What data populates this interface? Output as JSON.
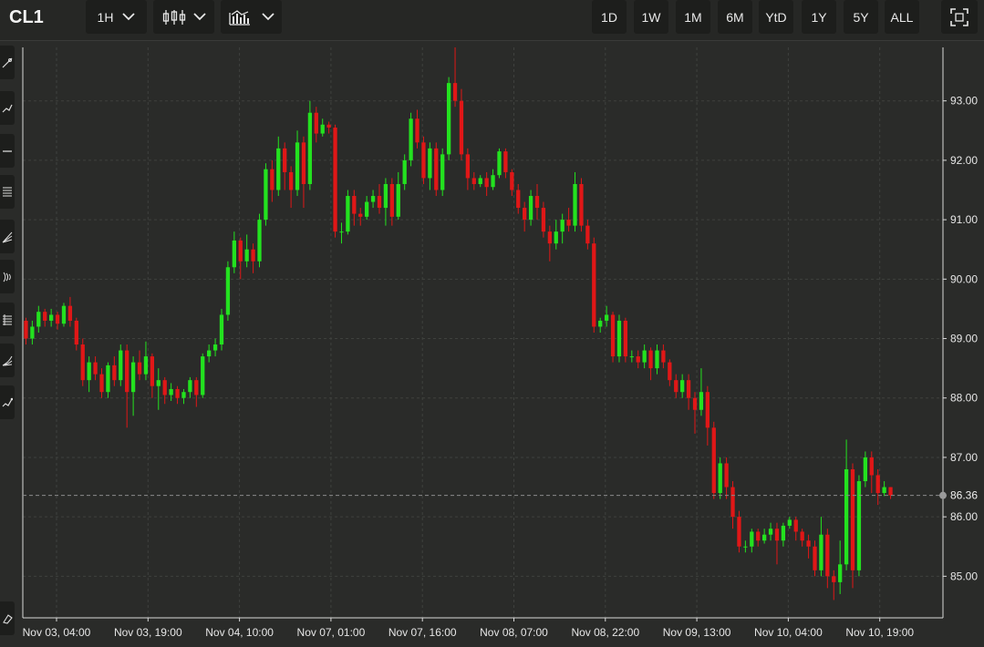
{
  "header": {
    "symbol": "CL1",
    "interval_label": "1H",
    "chart_type_icon": "candlestick-icon",
    "indicators_icon": "indicators-icon",
    "ranges": [
      "1D",
      "1W",
      "1M",
      "6M",
      "YtD",
      "1Y",
      "5Y",
      "ALL"
    ],
    "fullscreen_icon": "fullscreen-icon"
  },
  "toolbar_icons": [
    "line-tool-icon",
    "trend-tool-icon",
    "horizontal-line-icon",
    "fib-retracement-icon",
    "fib-fan-icon",
    "fib-arc-icon",
    "pitchfork-icon",
    "gann-fan-icon",
    "brush-icon",
    "eraser-icon"
  ],
  "colors": {
    "up": "#23e21f",
    "down": "#e01717",
    "background": "#2a2b29",
    "grid": "#3f413e",
    "last_price_line": "#8a8a8a"
  },
  "chart_data": {
    "type": "candlestick",
    "ylim": [
      84.3,
      93.9
    ],
    "y_ticks": [
      "93.00",
      "92.00",
      "91.00",
      "90.00",
      "89.00",
      "88.00",
      "87.00",
      "86.00",
      "85.00"
    ],
    "y_tick_values": [
      93,
      92,
      91,
      90,
      89,
      88,
      87,
      86,
      85
    ],
    "x_ticks": [
      "Nov 03, 04:00",
      "Nov 03, 19:00",
      "Nov 04, 10:00",
      "Nov 07, 01:00",
      "Nov 07, 16:00",
      "Nov 08, 07:00",
      "Nov 08, 22:00",
      "Nov 09, 13:00",
      "Nov 10, 04:00",
      "Nov 10, 19:00"
    ],
    "last_price": 86.36,
    "last_price_label": "86.36",
    "candles": [
      [
        89.3,
        89.0,
        89.35,
        88.9
      ],
      [
        89.0,
        89.2,
        89.3,
        88.9
      ],
      [
        89.2,
        89.45,
        89.55,
        89.1
      ],
      [
        89.45,
        89.3,
        89.5,
        89.2
      ],
      [
        89.3,
        89.4,
        89.5,
        89.2
      ],
      [
        89.4,
        89.25,
        89.45,
        89.15
      ],
      [
        89.25,
        89.55,
        89.6,
        89.2
      ],
      [
        89.55,
        89.3,
        89.7,
        89.2
      ],
      [
        89.3,
        88.9,
        89.35,
        88.8
      ],
      [
        88.9,
        88.3,
        89.0,
        88.2
      ],
      [
        88.3,
        88.6,
        88.7,
        88.1
      ],
      [
        88.6,
        88.4,
        88.7,
        88.3
      ],
      [
        88.4,
        88.1,
        88.5,
        88.0
      ],
      [
        88.1,
        88.55,
        88.6,
        88.0
      ],
      [
        88.55,
        88.3,
        88.7,
        88.2
      ],
      [
        88.3,
        88.8,
        88.9,
        88.2
      ],
      [
        88.8,
        88.1,
        88.9,
        87.5
      ],
      [
        88.1,
        88.6,
        88.7,
        87.7
      ],
      [
        88.6,
        88.4,
        88.8,
        88.3
      ],
      [
        88.4,
        88.7,
        88.95,
        88.3
      ],
      [
        88.7,
        88.2,
        88.75,
        88.0
      ],
      [
        88.2,
        88.3,
        88.5,
        87.8
      ],
      [
        88.3,
        88.05,
        88.35,
        87.9
      ],
      [
        88.05,
        88.15,
        88.25,
        87.95
      ],
      [
        88.15,
        88.0,
        88.2,
        87.9
      ],
      [
        88.0,
        88.1,
        88.15,
        87.9
      ],
      [
        88.1,
        88.3,
        88.35,
        88.0
      ],
      [
        88.3,
        88.05,
        88.35,
        87.85
      ],
      [
        88.05,
        88.7,
        88.75,
        88.0
      ],
      [
        88.7,
        88.8,
        88.9,
        88.6
      ],
      [
        88.8,
        88.9,
        89.0,
        88.7
      ],
      [
        88.9,
        89.4,
        89.5,
        88.8
      ],
      [
        89.4,
        90.2,
        90.3,
        89.3
      ],
      [
        90.2,
        90.65,
        90.8,
        90.1
      ],
      [
        90.65,
        90.3,
        90.7,
        90.0
      ],
      [
        90.3,
        90.5,
        90.75,
        90.2
      ],
      [
        90.5,
        90.3,
        90.6,
        90.1
      ],
      [
        90.3,
        91.0,
        91.1,
        90.2
      ],
      [
        91.0,
        91.85,
        91.95,
        90.9
      ],
      [
        91.85,
        91.5,
        92.0,
        91.3
      ],
      [
        91.5,
        92.2,
        92.4,
        91.4
      ],
      [
        92.2,
        91.8,
        92.3,
        91.5
      ],
      [
        91.8,
        91.5,
        91.9,
        91.2
      ],
      [
        91.5,
        92.3,
        92.5,
        91.4
      ],
      [
        92.3,
        91.6,
        92.4,
        91.2
      ],
      [
        91.6,
        92.8,
        93.0,
        91.5
      ],
      [
        92.8,
        92.45,
        92.9,
        92.3
      ],
      [
        92.45,
        92.6,
        92.7,
        92.4
      ],
      [
        92.6,
        92.55,
        92.65,
        92.45
      ],
      [
        92.55,
        90.8,
        92.6,
        90.7
      ],
      [
        90.8,
        90.8,
        90.95,
        90.6
      ],
      [
        90.8,
        91.4,
        91.5,
        90.75
      ],
      [
        91.4,
        91.1,
        91.5,
        90.9
      ],
      [
        91.1,
        91.05,
        91.2,
        90.9
      ],
      [
        91.05,
        91.3,
        91.4,
        91.0
      ],
      [
        91.3,
        91.4,
        91.5,
        91.2
      ],
      [
        91.4,
        91.2,
        91.6,
        91.1
      ],
      [
        91.2,
        91.6,
        91.7,
        90.9
      ],
      [
        91.6,
        91.05,
        91.7,
        90.9
      ],
      [
        91.05,
        91.6,
        91.8,
        91.0
      ],
      [
        91.6,
        92.0,
        92.1,
        91.5
      ],
      [
        92.0,
        92.7,
        92.8,
        91.9
      ],
      [
        92.7,
        92.3,
        92.85,
        92.2
      ],
      [
        92.3,
        91.7,
        92.4,
        91.6
      ],
      [
        91.7,
        92.2,
        92.3,
        91.5
      ],
      [
        92.2,
        91.5,
        92.3,
        91.4
      ],
      [
        91.5,
        92.1,
        92.2,
        91.4
      ],
      [
        92.1,
        93.3,
        93.4,
        92.0
      ],
      [
        93.3,
        93.0,
        93.9,
        92.9
      ],
      [
        93.0,
        92.1,
        93.2,
        92.0
      ],
      [
        92.1,
        91.7,
        92.2,
        91.5
      ],
      [
        91.7,
        91.6,
        91.8,
        91.5
      ],
      [
        91.6,
        91.7,
        91.75,
        91.55
      ],
      [
        91.7,
        91.55,
        91.8,
        91.4
      ],
      [
        91.55,
        91.75,
        91.85,
        91.5
      ],
      [
        91.75,
        92.15,
        92.2,
        91.7
      ],
      [
        92.15,
        91.8,
        92.2,
        91.7
      ],
      [
        91.8,
        91.5,
        91.85,
        91.4
      ],
      [
        91.5,
        91.2,
        91.6,
        91.1
      ],
      [
        91.2,
        91.0,
        91.3,
        90.8
      ],
      [
        91.0,
        91.4,
        91.5,
        90.9
      ],
      [
        91.4,
        91.2,
        91.6,
        91.0
      ],
      [
        91.2,
        90.8,
        91.3,
        90.7
      ],
      [
        90.8,
        90.6,
        90.9,
        90.3
      ],
      [
        90.6,
        90.8,
        91.0,
        90.5
      ],
      [
        90.8,
        91.0,
        91.1,
        90.6
      ],
      [
        91.0,
        90.9,
        91.2,
        90.8
      ],
      [
        90.9,
        91.6,
        91.8,
        90.8
      ],
      [
        91.6,
        90.9,
        91.7,
        90.8
      ],
      [
        90.9,
        90.6,
        91.0,
        90.5
      ],
      [
        90.6,
        89.2,
        90.7,
        89.1
      ],
      [
        89.2,
        89.3,
        89.35,
        89.1
      ],
      [
        89.3,
        89.4,
        89.55,
        89.2
      ],
      [
        89.4,
        88.7,
        89.45,
        88.6
      ],
      [
        88.7,
        89.3,
        89.4,
        88.6
      ],
      [
        89.3,
        88.7,
        89.35,
        88.6
      ],
      [
        88.7,
        88.7,
        88.8,
        88.6
      ],
      [
        88.7,
        88.6,
        88.8,
        88.5
      ],
      [
        88.6,
        88.8,
        88.9,
        88.5
      ],
      [
        88.8,
        88.5,
        88.85,
        88.3
      ],
      [
        88.5,
        88.8,
        88.9,
        88.4
      ],
      [
        88.8,
        88.6,
        88.9,
        88.5
      ],
      [
        88.6,
        88.3,
        88.65,
        88.2
      ],
      [
        88.3,
        88.1,
        88.4,
        88.0
      ],
      [
        88.1,
        88.3,
        88.4,
        88.0
      ],
      [
        88.3,
        88.0,
        88.4,
        87.8
      ],
      [
        88.0,
        87.8,
        88.1,
        87.4
      ],
      [
        87.8,
        88.1,
        88.5,
        87.7
      ],
      [
        88.1,
        87.5,
        88.2,
        87.2
      ],
      [
        87.5,
        86.4,
        87.6,
        86.3
      ],
      [
        86.4,
        86.9,
        87.0,
        86.3
      ],
      [
        86.9,
        86.5,
        87.0,
        86.3
      ],
      [
        86.5,
        86.0,
        86.6,
        85.8
      ],
      [
        86.0,
        85.5,
        86.1,
        85.4
      ],
      [
        85.5,
        85.5,
        85.6,
        85.4
      ],
      [
        85.5,
        85.75,
        85.8,
        85.4
      ],
      [
        85.75,
        85.6,
        85.8,
        85.5
      ],
      [
        85.6,
        85.7,
        85.8,
        85.55
      ],
      [
        85.7,
        85.8,
        85.9,
        85.6
      ],
      [
        85.8,
        85.6,
        85.9,
        85.2
      ],
      [
        85.6,
        85.85,
        85.9,
        85.5
      ],
      [
        85.85,
        85.95,
        86.0,
        85.8
      ],
      [
        85.95,
        85.75,
        86.0,
        85.6
      ],
      [
        85.75,
        85.6,
        85.8,
        85.5
      ],
      [
        85.6,
        85.5,
        85.7,
        85.3
      ],
      [
        85.5,
        85.1,
        85.6,
        85.0
      ],
      [
        85.1,
        85.7,
        86.0,
        85.0
      ],
      [
        85.7,
        85.0,
        85.8,
        84.8
      ],
      [
        85.0,
        84.9,
        85.1,
        84.6
      ],
      [
        84.9,
        85.2,
        85.6,
        84.7
      ],
      [
        85.2,
        86.8,
        87.3,
        85.1
      ],
      [
        86.8,
        85.1,
        86.9,
        84.8
      ],
      [
        85.1,
        86.6,
        86.7,
        85.0
      ],
      [
        86.6,
        87.0,
        87.1,
        86.5
      ],
      [
        87.0,
        86.7,
        87.1,
        86.4
      ],
      [
        86.7,
        86.4,
        86.8,
        86.2
      ],
      [
        86.4,
        86.5,
        86.6,
        86.35
      ],
      [
        86.5,
        86.36,
        86.5,
        86.3
      ]
    ]
  }
}
